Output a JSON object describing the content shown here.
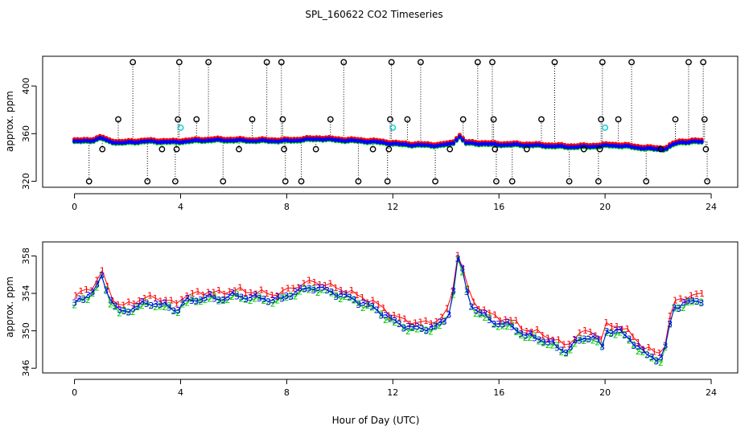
{
  "title": "SPL_160622  CO2 Timeseries",
  "xlabel": "Hour of Day (UTC)",
  "colors": {
    "red": "#ff0000",
    "green": "#00cc00",
    "blue": "#0000ff",
    "cyan": "#00cccc",
    "black": "#000000"
  },
  "chart_data": [
    {
      "type": "scatter",
      "name": "top-panel",
      "title": "SPL_160622  CO2 Timeseries",
      "ylabel": "approx. ppm",
      "xlim": [
        -1.2,
        25.0
      ],
      "ylim": [
        315,
        425
      ],
      "xticks": [
        0,
        4,
        8,
        12,
        16,
        20,
        24
      ],
      "yticks": [
        320,
        360,
        400
      ],
      "series_glyph": "●",
      "outlier_glyph": "o",
      "hourly_mean": {
        "x": [
          0.25,
          0.75,
          1.0,
          1.25,
          1.75,
          2.25,
          2.75,
          3.25,
          3.75,
          4.25,
          4.75,
          5.25,
          5.75,
          6.25,
          6.75,
          7.25,
          7.75,
          8.25,
          8.75,
          9.25,
          9.75,
          10.25,
          10.75,
          11.25,
          11.75,
          12.25,
          12.75,
          13.25,
          13.75,
          14.25,
          14.5,
          14.75,
          15.25,
          15.75,
          16.25,
          16.75,
          17.25,
          17.75,
          18.25,
          18.75,
          19.25,
          19.75,
          20.25,
          20.75,
          21.25,
          21.75,
          22.25,
          22.75,
          23.25,
          23.75
        ],
        "y": [
          353.5,
          354.5,
          356.5,
          353.8,
          352.0,
          353.0,
          353.5,
          353.2,
          352.8,
          353.6,
          354.2,
          354.6,
          354.4,
          354.3,
          354.0,
          354.0,
          353.8,
          354.2,
          355.0,
          355.6,
          354.8,
          354.2,
          353.8,
          353.2,
          352.2,
          351.0,
          350.5,
          350.2,
          350.0,
          351.5,
          358.0,
          352.0,
          351.6,
          351.0,
          350.6,
          350.6,
          350.2,
          349.8,
          349.2,
          348.8,
          349.0,
          349.5,
          350.2,
          349.5,
          348.2,
          347.2,
          347.0,
          352.6,
          353.2,
          353.2
        ]
      },
      "outliers": [
        {
          "x": 0.55,
          "y": 320
        },
        {
          "x": 1.05,
          "y": 347
        },
        {
          "x": 1.65,
          "y": 372
        },
        {
          "x": 2.2,
          "y": 420
        },
        {
          "x": 2.75,
          "y": 320
        },
        {
          "x": 3.3,
          "y": 347
        },
        {
          "x": 3.8,
          "y": 320
        },
        {
          "x": 3.85,
          "y": 347
        },
        {
          "x": 3.9,
          "y": 372
        },
        {
          "x": 3.95,
          "y": 420
        },
        {
          "x": 4.6,
          "y": 372
        },
        {
          "x": 5.05,
          "y": 420
        },
        {
          "x": 5.6,
          "y": 320
        },
        {
          "x": 6.2,
          "y": 347
        },
        {
          "x": 6.7,
          "y": 372
        },
        {
          "x": 7.25,
          "y": 420
        },
        {
          "x": 7.8,
          "y": 420
        },
        {
          "x": 7.85,
          "y": 372
        },
        {
          "x": 7.9,
          "y": 347
        },
        {
          "x": 7.95,
          "y": 320
        },
        {
          "x": 8.55,
          "y": 320
        },
        {
          "x": 9.1,
          "y": 347
        },
        {
          "x": 9.65,
          "y": 372
        },
        {
          "x": 10.15,
          "y": 420
        },
        {
          "x": 10.7,
          "y": 320
        },
        {
          "x": 11.25,
          "y": 347
        },
        {
          "x": 11.8,
          "y": 320
        },
        {
          "x": 11.85,
          "y": 347
        },
        {
          "x": 11.9,
          "y": 372
        },
        {
          "x": 11.95,
          "y": 420
        },
        {
          "x": 12.55,
          "y": 372
        },
        {
          "x": 13.05,
          "y": 420
        },
        {
          "x": 13.6,
          "y": 320
        },
        {
          "x": 14.15,
          "y": 347
        },
        {
          "x": 14.65,
          "y": 372
        },
        {
          "x": 15.2,
          "y": 420
        },
        {
          "x": 15.75,
          "y": 420
        },
        {
          "x": 15.8,
          "y": 372
        },
        {
          "x": 15.85,
          "y": 347
        },
        {
          "x": 15.9,
          "y": 320
        },
        {
          "x": 16.5,
          "y": 320
        },
        {
          "x": 17.05,
          "y": 347
        },
        {
          "x": 17.6,
          "y": 372
        },
        {
          "x": 18.1,
          "y": 420
        },
        {
          "x": 18.65,
          "y": 320
        },
        {
          "x": 19.2,
          "y": 347
        },
        {
          "x": 19.75,
          "y": 320
        },
        {
          "x": 19.8,
          "y": 347
        },
        {
          "x": 19.85,
          "y": 372
        },
        {
          "x": 19.9,
          "y": 420
        },
        {
          "x": 20.5,
          "y": 372
        },
        {
          "x": 21.0,
          "y": 420
        },
        {
          "x": 21.55,
          "y": 320
        },
        {
          "x": 22.1,
          "y": 347
        },
        {
          "x": 22.65,
          "y": 372
        },
        {
          "x": 23.15,
          "y": 420
        },
        {
          "x": 23.7,
          "y": 420
        },
        {
          "x": 23.75,
          "y": 372
        },
        {
          "x": 23.8,
          "y": 347
        },
        {
          "x": 23.85,
          "y": 320
        }
      ],
      "highlights": [
        {
          "x": 4.0,
          "y": 365
        },
        {
          "x": 12.0,
          "y": 365
        },
        {
          "x": 20.0,
          "y": 365
        }
      ]
    },
    {
      "type": "scatter",
      "name": "bottom-panel",
      "ylabel": "approx. ppm",
      "xlim": [
        -1.2,
        25.0
      ],
      "ylim": [
        345.5,
        359.5
      ],
      "xticks": [
        0,
        4,
        8,
        12,
        16,
        20,
        24
      ],
      "yticks": [
        346,
        350,
        354,
        358
      ],
      "series": [
        {
          "name": "1",
          "color": "red",
          "offset": 0.6,
          "glyph": "1"
        },
        {
          "name": "2",
          "color": "green",
          "offset": -0.15,
          "glyph": "2"
        },
        {
          "name": "3",
          "color": "blue",
          "offset": 0.0,
          "glyph": "3"
        }
      ],
      "base": {
        "x": [
          0.0,
          0.2,
          0.5,
          0.8,
          1.0,
          1.1,
          1.3,
          1.5,
          1.7,
          2.0,
          2.5,
          3.0,
          3.5,
          3.9,
          4.0,
          4.5,
          5.0,
          5.5,
          6.0,
          6.5,
          7.0,
          7.5,
          7.9,
          8.0,
          8.5,
          9.0,
          9.5,
          10.0,
          10.5,
          11.0,
          11.5,
          11.9,
          12.0,
          12.5,
          13.0,
          13.5,
          13.9,
          14.2,
          14.4,
          14.5,
          14.7,
          15.0,
          15.5,
          15.9,
          16.0,
          16.5,
          17.0,
          17.5,
          18.0,
          18.5,
          19.0,
          19.5,
          19.9,
          20.0,
          20.5,
          21.0,
          21.5,
          22.0,
          22.2,
          22.4,
          22.6,
          23.0,
          23.5,
          23.7
        ],
        "y": [
          352.8,
          353.5,
          353.8,
          354.3,
          356.0,
          355.5,
          353.5,
          352.8,
          352.0,
          352.2,
          352.8,
          353.0,
          352.6,
          352.2,
          353.0,
          353.3,
          353.6,
          353.4,
          353.8,
          353.6,
          353.5,
          353.3,
          353.5,
          353.8,
          354.3,
          354.7,
          354.3,
          353.9,
          353.4,
          352.8,
          352.1,
          351.3,
          351.0,
          350.5,
          350.2,
          350.4,
          350.8,
          352.5,
          357.0,
          358.5,
          355.0,
          352.5,
          351.5,
          350.8,
          350.8,
          350.5,
          349.5,
          349.2,
          348.6,
          347.8,
          349.0,
          349.5,
          348.3,
          350.0,
          350.0,
          349.0,
          347.5,
          347.0,
          347.2,
          350.2,
          352.5,
          353.0,
          353.2,
          353.4
        ]
      }
    }
  ]
}
